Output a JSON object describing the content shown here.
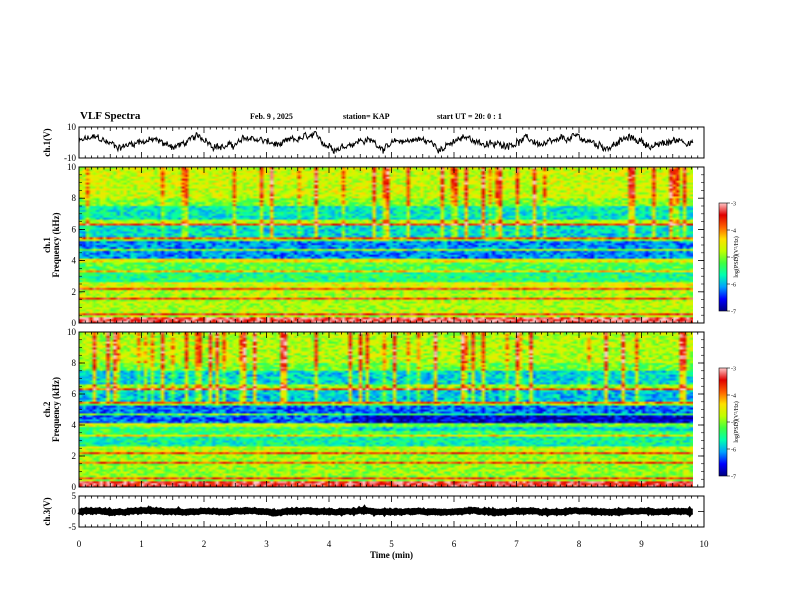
{
  "header": {
    "title": "VLF Spectra",
    "date": "Feb. 9 , 2025",
    "station": "station= KAP",
    "start": "start UT = 20: 0 : 1"
  },
  "chart_data": [
    {
      "type": "line",
      "id": "ch1-waveform",
      "ylabel": "ch.1(V)",
      "ylim": [
        -10,
        10
      ],
      "yticks": [
        "10",
        "-10"
      ],
      "xlim": [
        0,
        10
      ],
      "x_end": 9.82,
      "mean": 0,
      "amplitude": 6
    },
    {
      "type": "heatmap",
      "id": "ch1-spectrogram",
      "ylabel": "ch.1",
      "ylabel2": "Frequency (kHz)",
      "ylim": [
        0,
        10
      ],
      "yticks": [
        "0",
        "2",
        "4",
        "6",
        "8",
        "10"
      ],
      "xlim": [
        0,
        10
      ],
      "x_end": 9.82,
      "colorbar": {
        "label": "log(PSD)(V²/Hz)",
        "range": [
          -7,
          -3
        ],
        "ticks": [
          "-3",
          "-4",
          "-5",
          "-6",
          "-7"
        ],
        "colors": [
          "#00007f",
          "#0000ff",
          "#00a0ff",
          "#00ffb0",
          "#40ff40",
          "#c0ff00",
          "#ffe000",
          "#ff6000",
          "#e00000",
          "#ffc8c8"
        ]
      }
    },
    {
      "type": "heatmap",
      "id": "ch2-spectrogram",
      "ylabel": "ch.2",
      "ylabel2": "Frequency (kHz)",
      "ylim": [
        0,
        10
      ],
      "yticks": [
        "0",
        "2",
        "4",
        "6",
        "8",
        "10"
      ],
      "xlim": [
        0,
        10
      ],
      "x_end": 9.82,
      "colorbar": {
        "label": "log(PSD)(V²/Hz)",
        "range": [
          -7,
          -3
        ],
        "ticks": [
          "-3",
          "-4",
          "-5",
          "-6",
          "-7"
        ],
        "colors": [
          "#00007f",
          "#0000ff",
          "#00a0ff",
          "#00ffb0",
          "#40ff40",
          "#c0ff00",
          "#ffe000",
          "#ff6000",
          "#e00000",
          "#ffc8c8"
        ]
      }
    },
    {
      "type": "line",
      "id": "ch3-waveform",
      "ylabel": "ch.3(V)",
      "ylim": [
        -5,
        5
      ],
      "yticks": [
        "5",
        "0",
        "-5"
      ],
      "xlim": [
        0,
        10
      ],
      "x_end": 9.82,
      "mean": 0,
      "amplitude": 0.5
    }
  ],
  "xaxis": {
    "label": "Time (min)",
    "ticks": [
      "0",
      "1",
      "2",
      "3",
      "4",
      "5",
      "6",
      "7",
      "8",
      "9",
      "10"
    ]
  }
}
